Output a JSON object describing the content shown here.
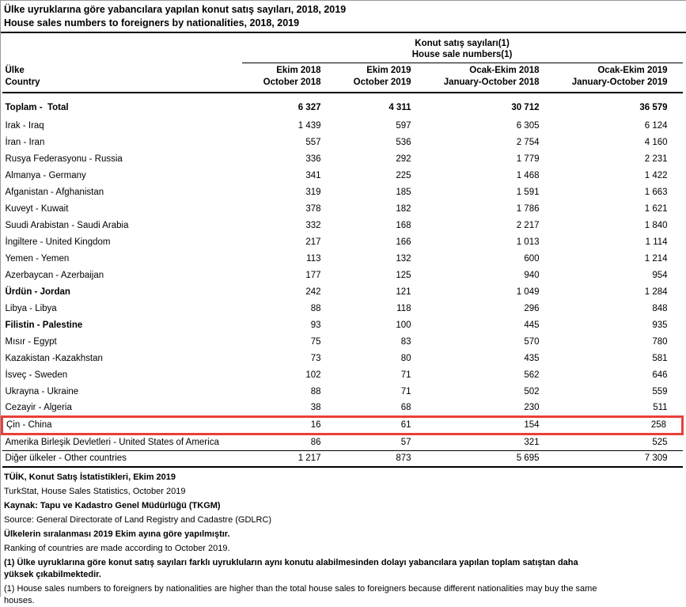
{
  "header": {
    "title_tr": "Ülke uyruklarına göre yabancılara yapılan konut satış sayıları, 2018, 2019",
    "title_en": "House sales numbers to foreigners by nationalities, 2018, 2019"
  },
  "table": {
    "group_header": {
      "tr": "Konut satış sayıları(1)",
      "en": "House sale numbers(1)"
    },
    "row_header": {
      "tr": "Ülke",
      "en": "Country"
    },
    "columns": [
      {
        "tr": "Ekim 2018",
        "en": "October 2018"
      },
      {
        "tr": "Ekim 2019",
        "en": "October 2019"
      },
      {
        "tr": "Ocak-Ekim 2018",
        "en": "January-October 2018"
      },
      {
        "tr": "Ocak-Ekim 2019",
        "en": "January-October 2019"
      }
    ],
    "rows": [
      {
        "label": "Toplam -  Total",
        "values": [
          "6 327",
          "4 311",
          "30 712",
          "36 579"
        ],
        "bold": true
      },
      {
        "label": "Irak - Iraq",
        "values": [
          "1 439",
          "597",
          "6 305",
          "6 124"
        ]
      },
      {
        "label": "İran - Iran",
        "values": [
          "557",
          "536",
          "2 754",
          "4 160"
        ]
      },
      {
        "label": "Rusya Federasyonu - Russia",
        "values": [
          "336",
          "292",
          "1 779",
          "2 231"
        ]
      },
      {
        "label": "Almanya - Germany",
        "values": [
          "341",
          "225",
          "1 468",
          "1 422"
        ]
      },
      {
        "label": "Afganistan - Afghanistan",
        "values": [
          "319",
          "185",
          "1 591",
          "1 663"
        ]
      },
      {
        "label": "Kuveyt - Kuwait",
        "values": [
          "378",
          "182",
          "1 786",
          "1 621"
        ]
      },
      {
        "label": "Suudi Arabistan - Saudi Arabia",
        "values": [
          "332",
          "168",
          "2 217",
          "1 840"
        ]
      },
      {
        "label": "İngiltere - United Kingdom",
        "values": [
          "217",
          "166",
          "1 013",
          "1 114"
        ]
      },
      {
        "label": "Yemen - Yemen",
        "values": [
          "113",
          "132",
          "600",
          "1 214"
        ]
      },
      {
        "label": "Azerbaycan - Azerbaijan",
        "values": [
          "177",
          "125",
          "940",
          "954"
        ]
      },
      {
        "label": "Ürdün - Jordan",
        "values": [
          "242",
          "121",
          "1 049",
          "1 284"
        ],
        "bold_label": true
      },
      {
        "label": "Libya - Libya",
        "values": [
          "88",
          "118",
          "296",
          "848"
        ]
      },
      {
        "label": "Filistin - Palestine",
        "values": [
          "93",
          "100",
          "445",
          "935"
        ],
        "bold_label": true
      },
      {
        "label": "Mısır - Egypt",
        "values": [
          "75",
          "83",
          "570",
          "780"
        ]
      },
      {
        "label": "Kazakistan -Kazakhstan",
        "values": [
          "73",
          "80",
          "435",
          "581"
        ]
      },
      {
        "label": "İsveç - Sweden",
        "values": [
          "102",
          "71",
          "562",
          "646"
        ]
      },
      {
        "label": "Ukrayna - Ukraine",
        "values": [
          "88",
          "71",
          "502",
          "559"
        ]
      },
      {
        "label": "Cezayir - Algeria",
        "values": [
          "38",
          "68",
          "230",
          "511"
        ]
      },
      {
        "label": "Çin - China",
        "values": [
          "16",
          "61",
          "154",
          "258"
        ],
        "highlighted": true
      },
      {
        "label": "Amerika Birleşik Devletleri - United States of America",
        "values": [
          "86",
          "57",
          "321",
          "525"
        ]
      },
      {
        "label": "Diğer ülkeler - Other countries",
        "values": [
          "1 217",
          "873",
          "5 695",
          "7 309"
        ],
        "separator_top": true
      }
    ]
  },
  "annotation": {
    "highlighted_row": "Çin - China",
    "highlight_color": "#e8403a"
  },
  "footnotes": [
    {
      "text": "TÜİK, Konut Satış İstatistikleri, Ekim 2019",
      "bold": true
    },
    {
      "text": "TurkStat, House Sales Statistics, October 2019",
      "bold": false
    },
    {
      "text": "Kaynak: Tapu ve Kadastro Genel Müdürlüğü (TKGM)",
      "bold": true
    },
    {
      "text": "Source: General Directorate of Land Registry and Cadastre (GDLRC)",
      "bold": false
    },
    {
      "text": "Ülkelerin sıralanması 2019 Ekim ayına göre yapılmıştır.",
      "bold": true
    },
    {
      "text": "Ranking of countries are made according to October 2019.",
      "bold": false
    },
    {
      "text": "(1) Ülke uyruklarına göre konut satış sayıları farklı uyrukluların aynı konutu alabilmesinden dolayı yabancılara yapılan toplam satıştan daha  yüksek çıkabilmektedir.",
      "bold": true
    },
    {
      "text": "(1) House sales numbers to foreigners by nationalities are higher than the total house sales to foreigners because different nationalities may buy the same houses.",
      "bold": false
    }
  ]
}
